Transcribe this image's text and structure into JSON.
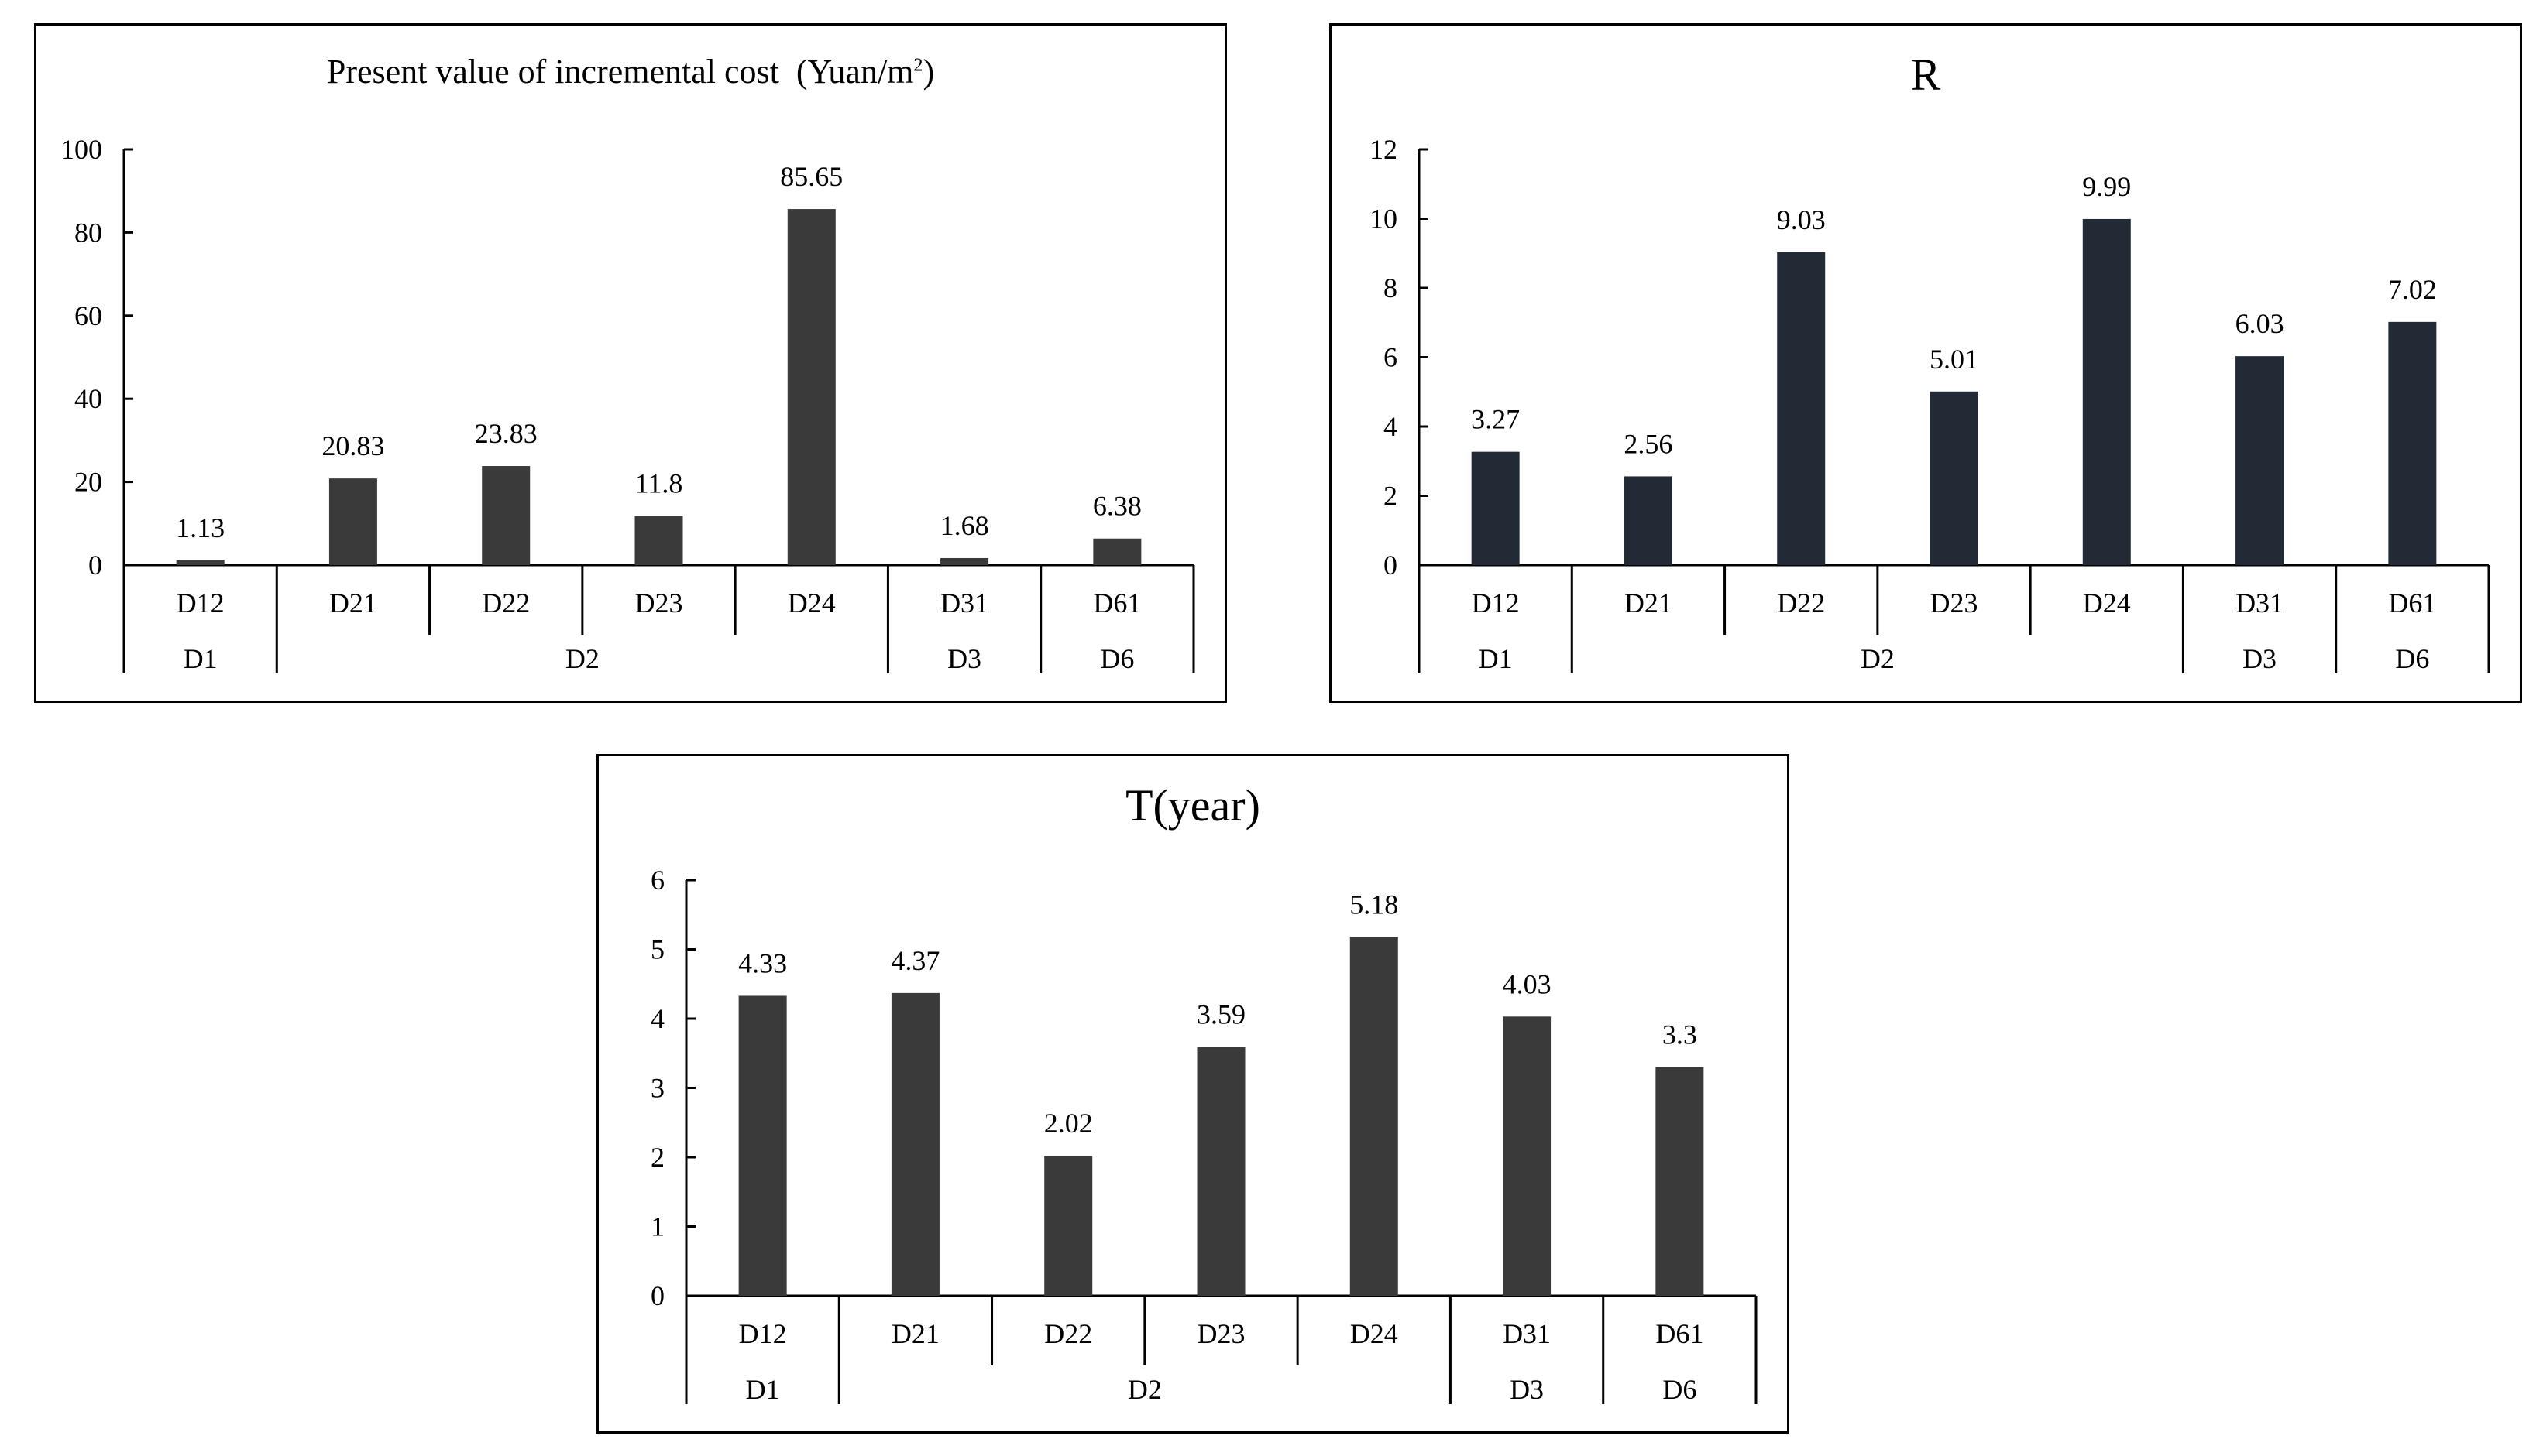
{
  "chart_data": [
    {
      "type": "bar",
      "title": "Present value of incremental cost",
      "title_unit": "(Yuan/m",
      "title_unit_sup": "2",
      "title_unit_close": ")",
      "categories": [
        "D12",
        "D21",
        "D22",
        "D23",
        "D24",
        "D31",
        "D61"
      ],
      "groups": [
        {
          "label": "D1",
          "span": 1
        },
        {
          "label": "D2",
          "span": 4
        },
        {
          "label": "D3",
          "span": 1
        },
        {
          "label": "D6",
          "span": 1
        }
      ],
      "values": [
        1.13,
        20.83,
        23.83,
        11.8,
        85.65,
        1.68,
        6.38
      ],
      "value_labels": [
        "1.13",
        "20.83",
        "23.83",
        "11.8",
        "85.65",
        "1.68",
        "6.38"
      ],
      "ylim": [
        0,
        100
      ],
      "yticks": [
        0,
        20,
        40,
        60,
        80,
        100
      ],
      "bar_color": "#3a3a3a",
      "grid": false
    },
    {
      "type": "bar",
      "title": "R",
      "categories": [
        "D12",
        "D21",
        "D22",
        "D23",
        "D24",
        "D31",
        "D61"
      ],
      "groups": [
        {
          "label": "D1",
          "span": 1
        },
        {
          "label": "D2",
          "span": 4
        },
        {
          "label": "D3",
          "span": 1
        },
        {
          "label": "D6",
          "span": 1
        }
      ],
      "values": [
        3.27,
        2.56,
        9.03,
        5.01,
        9.99,
        6.03,
        7.02
      ],
      "value_labels": [
        "3.27",
        "2.56",
        "9.03",
        "5.01",
        "9.99",
        "6.03",
        "7.02"
      ],
      "ylim": [
        0,
        12
      ],
      "yticks": [
        0,
        2,
        4,
        6,
        8,
        10,
        12
      ],
      "bar_color": "#222a36",
      "grid": false
    },
    {
      "type": "bar",
      "title": "T(year)",
      "categories": [
        "D12",
        "D21",
        "D22",
        "D23",
        "D24",
        "D31",
        "D61"
      ],
      "groups": [
        {
          "label": "D1",
          "span": 1
        },
        {
          "label": "D2",
          "span": 4
        },
        {
          "label": "D3",
          "span": 1
        },
        {
          "label": "D6",
          "span": 1
        }
      ],
      "values": [
        4.33,
        4.37,
        2.02,
        3.59,
        5.18,
        4.03,
        3.3
      ],
      "value_labels": [
        "4.33",
        "4.37",
        "2.02",
        "3.59",
        "5.18",
        "4.03",
        "3.3"
      ],
      "ylim": [
        0,
        6
      ],
      "yticks": [
        0,
        1,
        2,
        3,
        4,
        5,
        6
      ],
      "bar_color": "#3a3a3a",
      "grid": false
    }
  ]
}
